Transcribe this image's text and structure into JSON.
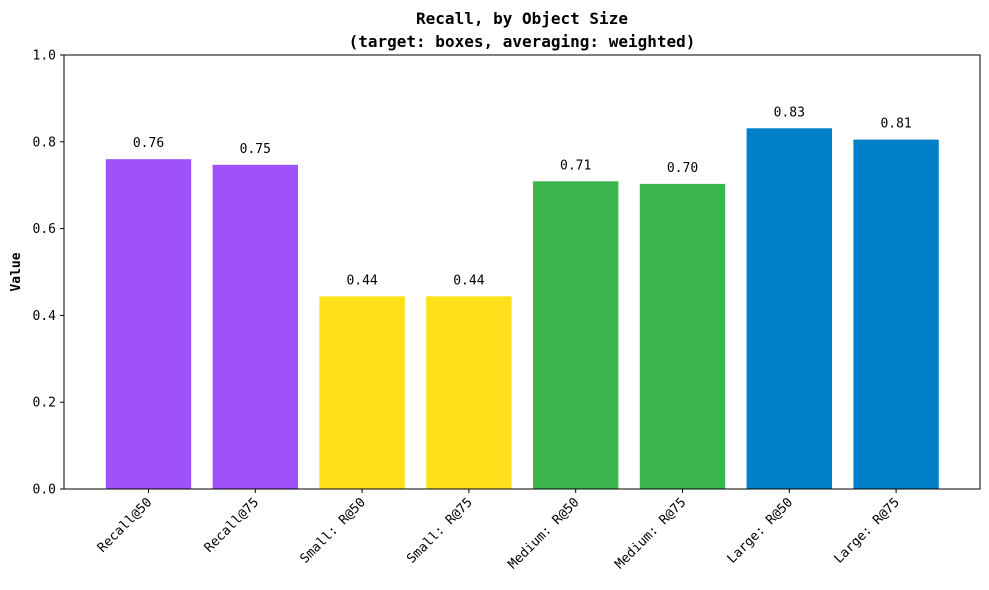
{
  "chart_data": {
    "type": "bar",
    "title": "Recall, by Object Size",
    "subtitle": "(target: boxes, averaging: weighted)",
    "xlabel": "",
    "ylabel": "Value",
    "ylim": [
      0,
      1.0
    ],
    "yticks": [
      "0.0",
      "0.2",
      "0.4",
      "0.6",
      "0.8",
      "1.0"
    ],
    "grid": false,
    "categories": [
      "Recall@50",
      "Recall@75",
      "Small: R@50",
      "Small: R@75",
      "Medium: R@50",
      "Medium: R@75",
      "Large: R@50",
      "Large: R@75"
    ],
    "values": [
      0.76,
      0.747,
      0.444,
      0.444,
      0.709,
      0.703,
      0.831,
      0.805
    ],
    "data_labels": [
      "0.76",
      "0.75",
      "0.44",
      "0.44",
      "0.71",
      "0.70",
      "0.83",
      "0.81"
    ],
    "colors": [
      "#a052fa",
      "#a052fa",
      "#ffe01a",
      "#ffe01a",
      "#3db54e",
      "#3db54e",
      "#0080c8",
      "#0080c8"
    ]
  }
}
